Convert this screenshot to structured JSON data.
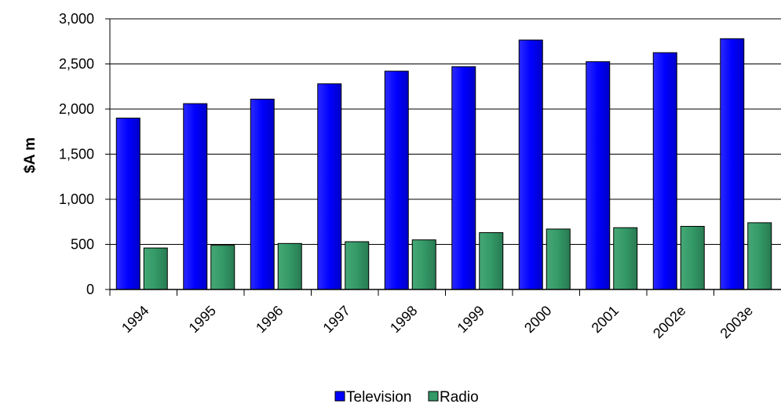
{
  "chart_data": {
    "type": "bar",
    "title": "",
    "xlabel": "",
    "ylabel": "$A m",
    "ylim": [
      0,
      3000
    ],
    "yticks": [
      0,
      500,
      1000,
      1500,
      2000,
      2500,
      3000
    ],
    "ytick_labels": [
      "0",
      "500",
      "1,000",
      "1,500",
      "2,000",
      "2,500",
      "3,000"
    ],
    "grid": "horizontal",
    "legend": "bottom",
    "categories": [
      "1994",
      "1995",
      "1996",
      "1997",
      "1998",
      "1999",
      "2000",
      "2001",
      "2002e",
      "2003e"
    ],
    "series": [
      {
        "name": "Television",
        "color": "#0000ff",
        "values": [
          1900,
          2060,
          2110,
          2280,
          2420,
          2470,
          2765,
          2525,
          2625,
          2780
        ]
      },
      {
        "name": "Radio",
        "color": "#339966",
        "values": [
          460,
          490,
          510,
          530,
          550,
          630,
          670,
          685,
          700,
          740
        ]
      }
    ]
  }
}
